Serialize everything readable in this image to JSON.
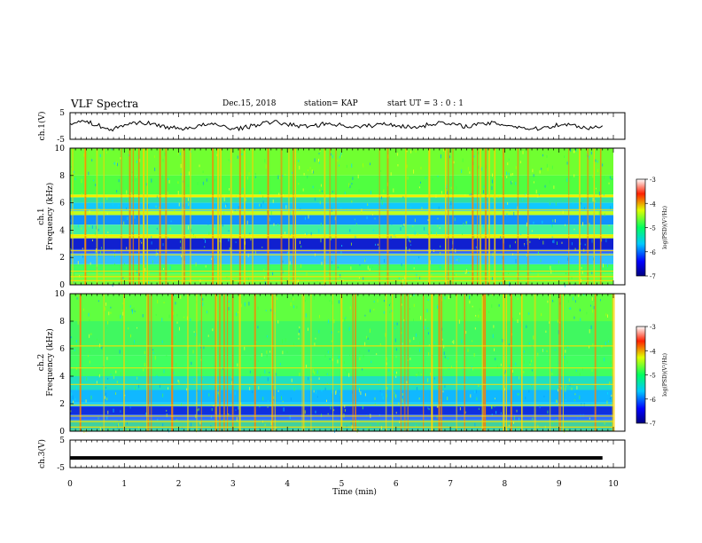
{
  "header": {
    "title": "VLF Spectra",
    "date": "Dec.15, 2018",
    "station": "station= KAP",
    "start": "start UT =  3 : 0 : 1"
  },
  "chart_data": [
    {
      "type": "line",
      "ylabel": "ch.1(V)",
      "ylim": [
        -5,
        5
      ],
      "yticks": [
        "5",
        "-5"
      ],
      "xlim": [
        0,
        10
      ],
      "series": [
        {
          "values": [
            1.2,
            1.8,
            0.4,
            -1.6,
            0.5,
            1.4,
            0.8,
            -0.3,
            -1.0,
            -0.5,
            0.6,
            0.2,
            -1.1,
            -0.4,
            0.9,
            1.5,
            0.6,
            -0.2,
            0.3,
            1.0,
            0.2,
            -0.4,
            0.1,
            0.8,
            0.3,
            -0.6,
            0.2,
            1.3,
            0.5,
            -0.1,
            0.6,
            1.1,
            0.4,
            -0.5,
            -1.2,
            -0.3,
            0.7,
            0.2,
            -0.8,
            0.1
          ]
        }
      ]
    },
    {
      "type": "heatmap",
      "ylabel_top": "ch.1",
      "ylabel": "Frequency (kHz)",
      "xlim": [
        0,
        10
      ],
      "ylim": [
        0,
        10
      ],
      "yticks": [
        "0",
        "2",
        "4",
        "6",
        "8",
        "10"
      ],
      "colorbar": {
        "label": "log(PSD)(V²/Hz)",
        "range": [
          -7,
          -3
        ],
        "ticks": [
          "-3",
          "-4",
          "-5",
          "-6",
          "-7"
        ]
      }
    },
    {
      "type": "heatmap",
      "ylabel_top": "ch.2",
      "ylabel": "Frequency (kHz)",
      "xlim": [
        0,
        10
      ],
      "ylim": [
        0,
        10
      ],
      "yticks": [
        "0",
        "2",
        "4",
        "6",
        "8",
        "10"
      ],
      "colorbar": {
        "label": "log(PSD)(V²/Hz)",
        "range": [
          -7,
          -3
        ],
        "ticks": [
          "-3",
          "-4",
          "-5",
          "-6",
          "-7"
        ]
      }
    },
    {
      "type": "line",
      "ylabel": "ch.3(V)",
      "ylim": [
        -5,
        5
      ],
      "yticks": [
        "5",
        "-5"
      ],
      "xlabel": "Time (min)",
      "xlim": [
        0,
        10
      ],
      "xticks": [
        "0",
        "1",
        "2",
        "3",
        "4",
        "5",
        "6",
        "7",
        "8",
        "9",
        "10"
      ],
      "series": [
        {
          "values": [
            -1.5,
            -1.5
          ]
        }
      ]
    }
  ]
}
